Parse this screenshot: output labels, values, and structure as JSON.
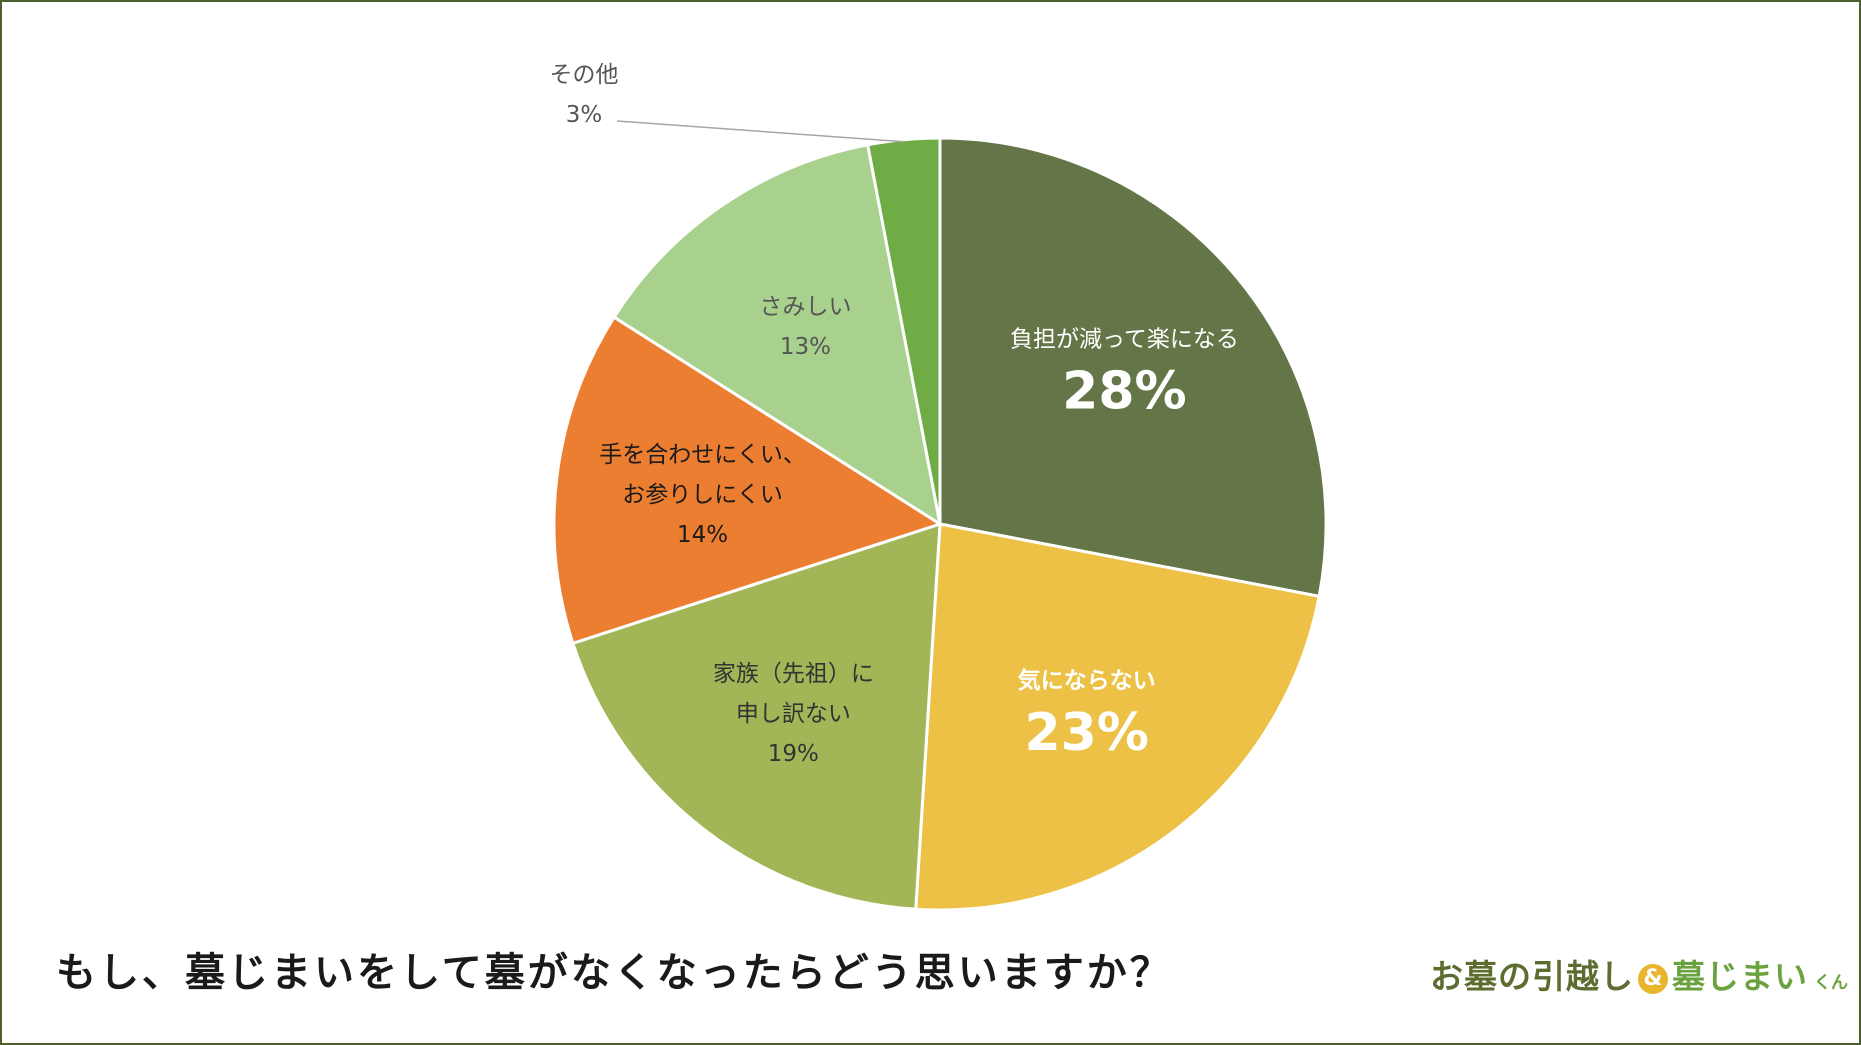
{
  "question": "もし、墓じまいをして墓がなくなったらどう思いますか？",
  "logo": {
    "part1": "お墓の引越し",
    "amp": "&",
    "part2": "墓じまい",
    "suffix": "くん"
  },
  "colors": {
    "frame": "#4e5f2e",
    "dark_olive": "#647548",
    "yellow": "#ecc146",
    "olive_green": "#a2b657",
    "orange": "#eb7e31",
    "light_green": "#a9d18e",
    "green": "#6fac46"
  },
  "chart_data": {
    "type": "pie",
    "title": "",
    "start_angle_deg": 0,
    "direction": "clockwise",
    "slices": [
      {
        "label_lines": [
          "負担が減って楽になる"
        ],
        "value_label": "28%",
        "value": 28,
        "color": "#647548",
        "label_color": "#ffffff",
        "emphasis": true
      },
      {
        "label_lines": [
          "気にならない"
        ],
        "value_label": "23%",
        "value": 23,
        "color": "#ecc146",
        "label_color": "#ffffff",
        "emphasis": true
      },
      {
        "label_lines": [
          "家族（先祖）に",
          "申し訳ない"
        ],
        "value_label": "19%",
        "value": 19,
        "color": "#a2b657",
        "label_color": "#333333",
        "emphasis": false
      },
      {
        "label_lines": [
          "手を合わせにくい、",
          "お参りしにくい"
        ],
        "value_label": "14%",
        "value": 14,
        "color": "#eb7e31",
        "label_color": "#1a1a1a",
        "emphasis": false
      },
      {
        "label_lines": [
          "さみしい"
        ],
        "value_label": "13%",
        "value": 13,
        "color": "#a9d18e",
        "label_color": "#555555",
        "emphasis": false
      },
      {
        "label_lines": [
          "その他"
        ],
        "value_label": "3%",
        "value": 3,
        "color": "#6fac46",
        "label_color": "#555555",
        "emphasis": false,
        "external_label": true
      }
    ]
  }
}
